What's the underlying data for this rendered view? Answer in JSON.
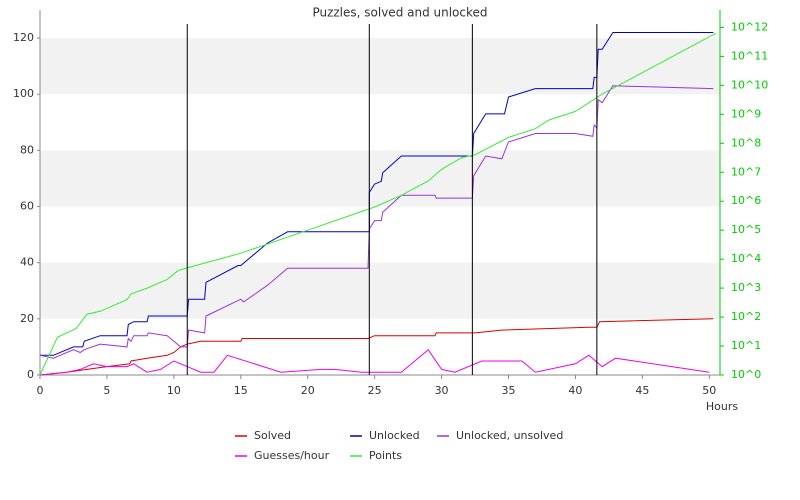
{
  "chart_data": {
    "type": "line",
    "title": "Puzzles, solved and unlocked",
    "x_label": "Hours",
    "xlim": [
      0,
      50.8
    ],
    "xticks": [
      0,
      5,
      10,
      15,
      20,
      25,
      30,
      35,
      40,
      45,
      50
    ],
    "ylim": [
      0,
      130
    ],
    "yticks": [
      0,
      20,
      40,
      60,
      80,
      100,
      120
    ],
    "y2lim": [
      1,
      4000000000000
    ],
    "y2log": true,
    "y2color": "#00cc00",
    "y2ticks": [
      {
        "value": 1,
        "label": "10^0"
      },
      {
        "value": 10,
        "label": "10^1"
      },
      {
        "value": 100,
        "label": "10^2"
      },
      {
        "value": 1000,
        "label": "10^3"
      },
      {
        "value": 10000,
        "label": "10^4"
      },
      {
        "value": 100000,
        "label": "10^5"
      },
      {
        "value": 1000000,
        "label": "10^6"
      },
      {
        "value": 10000000,
        "label": "10^7"
      },
      {
        "value": 100000000,
        "label": "10^8"
      },
      {
        "value": 1000000000,
        "label": "10^9"
      },
      {
        "value": 10000000000,
        "label": "10^10"
      },
      {
        "value": 100000000000,
        "label": "10^11"
      },
      {
        "value": 1000000000000,
        "label": "10^12"
      }
    ],
    "grid_bands": true,
    "vlines": [
      11,
      24.6,
      32.3,
      41.6
    ],
    "vline_color": "#000000",
    "series": [
      {
        "name": "Solved",
        "color": "#dd0000",
        "x": [
          0,
          2,
          3.5,
          5,
          6.7,
          6.8,
          8,
          9.5,
          10,
          10.5,
          11,
          12,
          15,
          15.1,
          24.5,
          25,
          29.5,
          29.6,
          32.5,
          34.5,
          41,
          41.6,
          41.8,
          50.3
        ],
        "values": [
          0,
          1,
          2,
          3,
          4,
          5,
          6,
          7,
          8,
          10,
          11,
          12,
          12,
          13,
          13,
          14,
          14,
          15,
          15,
          16,
          17,
          17,
          19,
          20
        ]
      },
      {
        "name": "Unlocked",
        "color": "#0000cc",
        "x": [
          0,
          1,
          2.5,
          3.2,
          3.3,
          4.5,
          6.5,
          6.6,
          7,
          8,
          8.1,
          11,
          11.1,
          12.3,
          12.4,
          14.8,
          15,
          17,
          18.5,
          24.6,
          24.6,
          25,
          25.5,
          25.6,
          27,
          32.3,
          32.4,
          33.3,
          34.7,
          35,
          37,
          41.3,
          41.4,
          41.6,
          41.7,
          42,
          42.8,
          50.3
        ],
        "values": [
          7,
          7,
          10,
          10,
          12,
          14,
          14,
          18,
          19,
          19,
          21,
          21,
          27,
          27,
          33,
          39,
          39,
          47,
          51,
          51,
          65,
          68,
          69,
          72,
          78,
          78,
          86,
          93,
          93,
          99,
          102,
          102,
          106,
          106,
          116,
          116,
          122,
          122
        ]
      },
      {
        "name": "Unlocked, unsolved",
        "color": "#9933dd",
        "x": [
          0,
          1,
          2.5,
          3,
          3.3,
          4.5,
          6.5,
          6.6,
          6.8,
          7,
          8,
          8.1,
          9.5,
          10,
          10.5,
          11,
          11.1,
          12.3,
          12.4,
          15,
          15.2,
          17,
          18.5,
          24.5,
          24.6,
          25,
          25.5,
          25.6,
          27,
          29.5,
          29.6,
          32.3,
          32.4,
          33.3,
          34.5,
          35,
          37,
          40,
          41.3,
          41.4,
          41.6,
          41.7,
          42,
          42.8,
          50.3
        ],
        "values": [
          7,
          6,
          9,
          8,
          9,
          11,
          10,
          13,
          12,
          14,
          14,
          15,
          14,
          12,
          10,
          10,
          16,
          15,
          21,
          27,
          26,
          32,
          38,
          38,
          52,
          55,
          55,
          58,
          64,
          64,
          63,
          63,
          71,
          78,
          77,
          83,
          86,
          86,
          85,
          89,
          88,
          98,
          97,
          103,
          102
        ]
      },
      {
        "name": "Guesses/hour",
        "color": "#ee00ee",
        "x": [
          0,
          2,
          3,
          4,
          5,
          6.5,
          7,
          8,
          9,
          10,
          11,
          12,
          13,
          14,
          18,
          21,
          22,
          24,
          25,
          27,
          29,
          30,
          31,
          33,
          36,
          37,
          40,
          41,
          42,
          43,
          50
        ],
        "values": [
          0,
          1,
          2,
          4,
          3,
          3,
          4,
          1,
          2,
          5,
          3,
          1,
          1,
          7,
          1,
          2,
          2,
          1,
          1,
          1,
          9,
          2,
          1,
          5,
          5,
          1,
          4,
          7,
          3,
          6,
          1
        ]
      },
      {
        "name": "Points",
        "color": "#33ee33",
        "axis": "y2",
        "x": [
          0,
          1.3,
          2.7,
          3.5,
          4.5,
          6.5,
          6.8,
          8,
          9.5,
          10.3,
          11,
          15,
          20,
          25,
          27,
          29,
          30,
          31.5,
          32.5,
          35,
          37,
          38,
          40,
          42,
          50.5
        ],
        "values": [
          1,
          20,
          40,
          126,
          158,
          400,
          631,
          1000,
          2000,
          4000,
          5000,
          16000,
          100000,
          630000,
          1600000,
          5000000,
          12600000,
          32000000,
          40000000,
          160000000,
          320000000,
          630000000,
          1260000000,
          5000000000,
          630000000000
        ]
      }
    ]
  }
}
